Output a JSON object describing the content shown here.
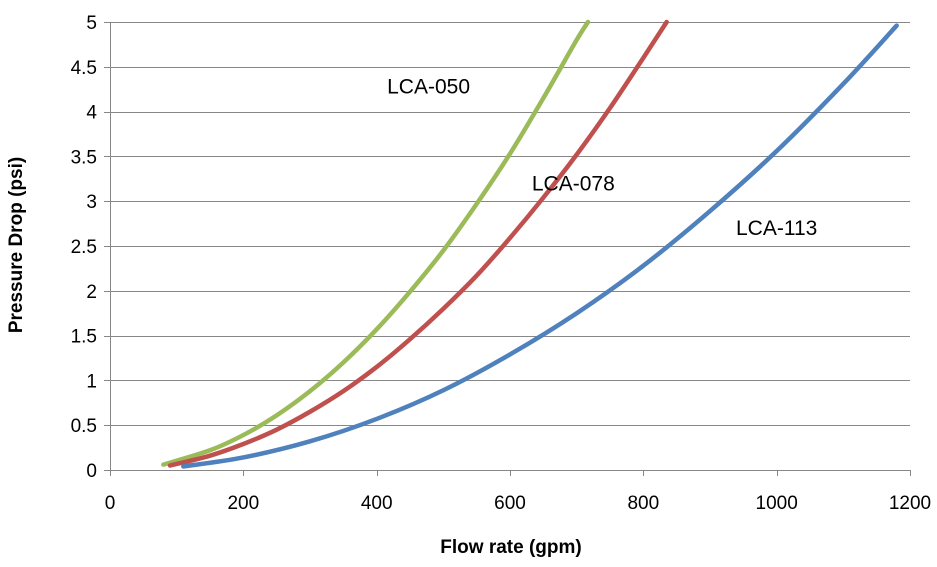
{
  "chart_data": {
    "type": "line",
    "title": "",
    "xlabel": "Flow rate (gpm)",
    "ylabel": "Pressure Drop (psi)",
    "xlim": [
      0,
      1200
    ],
    "ylim": [
      0,
      5
    ],
    "x_ticks": [
      0,
      200,
      400,
      600,
      800,
      1000,
      1200
    ],
    "y_ticks": [
      0,
      0.5,
      1,
      1.5,
      2,
      2.5,
      3,
      3.5,
      4,
      4.5,
      5
    ],
    "x_tick_labels": [
      "0",
      "200",
      "400",
      "600",
      "800",
      "1000",
      "1200"
    ],
    "y_tick_labels": [
      "0",
      "0.5",
      "1",
      "1.5",
      "2",
      "2.5",
      "3",
      "3.5",
      "4",
      "4.5",
      "5"
    ],
    "grid": "horizontal",
    "legend": "none",
    "series": [
      {
        "name": "LCA-050",
        "color": "#9BBB59",
        "x": [
          80,
          150,
          200,
          250,
          300,
          350,
          400,
          450,
          500,
          550,
          600,
          650,
          700,
          717
        ],
        "y": [
          0.06,
          0.22,
          0.39,
          0.61,
          0.88,
          1.2,
          1.57,
          1.99,
          2.45,
          2.97,
          3.53,
          4.15,
          4.8,
          5.0
        ]
      },
      {
        "name": "LCA-078",
        "color": "#C0504D",
        "x": [
          90,
          150,
          200,
          250,
          300,
          350,
          400,
          450,
          500,
          550,
          600,
          650,
          700,
          750,
          800,
          835
        ],
        "y": [
          0.05,
          0.16,
          0.29,
          0.45,
          0.65,
          0.88,
          1.15,
          1.46,
          1.8,
          2.17,
          2.59,
          3.04,
          3.52,
          4.04,
          4.6,
          5.0
        ]
      },
      {
        "name": "LCA-113",
        "color": "#4F81BD",
        "x": [
          110,
          200,
          300,
          400,
          500,
          600,
          700,
          800,
          900,
          1000,
          1100,
          1180
        ],
        "y": [
          0.04,
          0.14,
          0.32,
          0.57,
          0.89,
          1.29,
          1.75,
          2.28,
          2.89,
          3.56,
          4.31,
          4.96
        ]
      }
    ],
    "annotations": [
      {
        "text": "LCA-050",
        "x": 540,
        "y": 4.2,
        "anchor": "end"
      },
      {
        "text": "LCA-078",
        "x": 695,
        "y": 3.12,
        "anchor": "middle"
      },
      {
        "text": "LCA-113",
        "x": 1000,
        "y": 2.62,
        "anchor": "middle"
      }
    ]
  }
}
